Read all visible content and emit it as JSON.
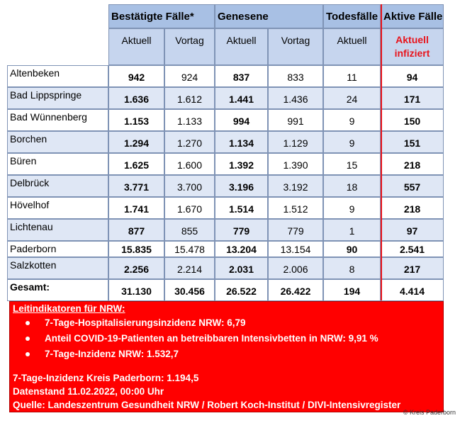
{
  "headers": {
    "groups": [
      "Bestätigte Fälle*",
      "Genesene",
      "Todesfälle",
      "Aktive Fälle"
    ],
    "sub": [
      "Aktuell",
      "Vortag",
      "Aktuell",
      "Vortag",
      "Aktuell",
      "Aktuell infiziert"
    ]
  },
  "rows": [
    {
      "name": "Altenbeken",
      "c1": "942",
      "c2": "924",
      "c3": "837",
      "c4": "833",
      "c5": "11",
      "c6": "94"
    },
    {
      "name": "Bad Lippspringe",
      "c1": "1.636",
      "c2": "1.612",
      "c3": "1.441",
      "c4": "1.436",
      "c5": "24",
      "c6": "171"
    },
    {
      "name": "Bad Wünnenberg",
      "c1": "1.153",
      "c2": "1.133",
      "c3": "994",
      "c4": "991",
      "c5": "9",
      "c6": "150"
    },
    {
      "name": "Borchen",
      "c1": "1.294",
      "c2": "1.270",
      "c3": "1.134",
      "c4": "1.129",
      "c5": "9",
      "c6": "151"
    },
    {
      "name": "Büren",
      "c1": "1.625",
      "c2": "1.600",
      "c3": "1.392",
      "c4": "1.390",
      "c5": "15",
      "c6": "218"
    },
    {
      "name": "Delbrück",
      "c1": "3.771",
      "c2": "3.700",
      "c3": "3.196",
      "c4": "3.192",
      "c5": "18",
      "c6": "557"
    },
    {
      "name": "Hövelhof",
      "c1": "1.741",
      "c2": "1.670",
      "c3": "1.514",
      "c4": "1.512",
      "c5": "9",
      "c6": "218"
    },
    {
      "name": "Lichtenau",
      "c1": "877",
      "c2": "855",
      "c3": "779",
      "c4": "779",
      "c5": "1",
      "c6": "97"
    },
    {
      "name": "Paderborn",
      "c1": "15.835",
      "c2": "15.478",
      "c3": "13.204",
      "c4": "13.154",
      "c5": "90",
      "c6": "2.541"
    },
    {
      "name": "Salzkotten",
      "c1": "2.256",
      "c2": "2.214",
      "c3": "2.031",
      "c4": "2.006",
      "c5": "8",
      "c6": "217"
    },
    {
      "name": "Gesamt:",
      "c1": "31.130",
      "c2": "30.456",
      "c3": "26.522",
      "c4": "26.422",
      "c5": "194",
      "c6": "4.414"
    }
  ],
  "info": {
    "heading": "Leitindikatoren für NRW:",
    "bullets": [
      "7-Tage-Hospitalisierungsinzidenz NRW: 6,79",
      "Anteil COVID-19-Patienten an betreibbaren Intensivbetten in NRW: 9,91 %",
      "7-Tage-Inzidenz NRW: 1.532,7"
    ],
    "kreis": "7-Tage-Inzidenz Kreis Paderborn: 1.194,5",
    "datenstand": "Datenstand 11.02.2022, 00:00 Uhr",
    "quelle": "Quelle: Landeszentrum Gesundheit NRW / Robert Koch-Institut / DIVI-Intensivregister",
    "credit": "© Kreis Paderborn"
  }
}
